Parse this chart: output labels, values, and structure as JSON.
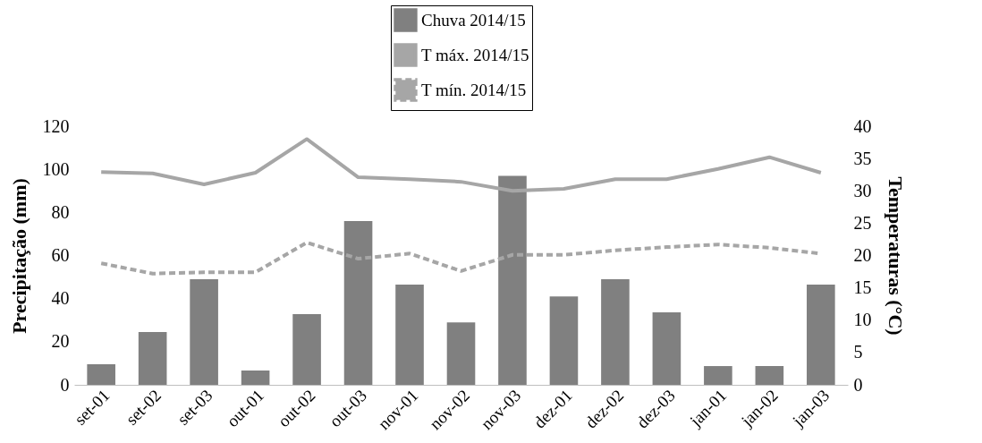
{
  "chart_data": {
    "type": "bar",
    "categories": [
      "set-01",
      "set-02",
      "set-03",
      "out-01",
      "out-02",
      "out-03",
      "nov-01",
      "nov-02",
      "nov-03",
      "dez-01",
      "dez-02",
      "dez-03",
      "jan-01",
      "jan-02",
      "jan-03"
    ],
    "series": [
      {
        "name": "Chuva 2014/15",
        "type": "bar",
        "color": "#808080",
        "values": [
          9.5,
          24.5,
          49,
          6.6,
          32.8,
          76,
          46.5,
          29,
          97,
          41,
          49,
          33.6,
          8.7,
          8.7,
          46.5
        ]
      },
      {
        "name": "T máx. 2014/15",
        "type": "line",
        "axis": "y2",
        "color": "#a6a6a6",
        "line_style": "solid",
        "values": [
          32.9,
          32.7,
          31.0,
          32.8,
          38.0,
          32.1,
          31.8,
          31.4,
          30.0,
          30.3,
          31.8,
          31.8,
          33.4,
          35.2,
          32.8
        ]
      },
      {
        "name": "T mín. 2014/15",
        "type": "line",
        "axis": "y2",
        "color": "#a6a6a6",
        "line_style": "dashed",
        "values": [
          18.8,
          17.2,
          17.4,
          17.4,
          22.0,
          19.5,
          20.3,
          17.6,
          20.1,
          20.1,
          20.8,
          21.3,
          21.7,
          21.2,
          20.3
        ]
      }
    ],
    "ylabel": "Precipitação (mm)",
    "y2label": "Temperaturas (°C)",
    "ylim": [
      0,
      120
    ],
    "yticks": [
      0,
      20,
      40,
      60,
      80,
      100,
      120
    ],
    "y2lim": [
      0,
      40
    ],
    "y2ticks": [
      0,
      5,
      10,
      15,
      20,
      25,
      30,
      35,
      40
    ],
    "legend": "top",
    "grid": false
  }
}
